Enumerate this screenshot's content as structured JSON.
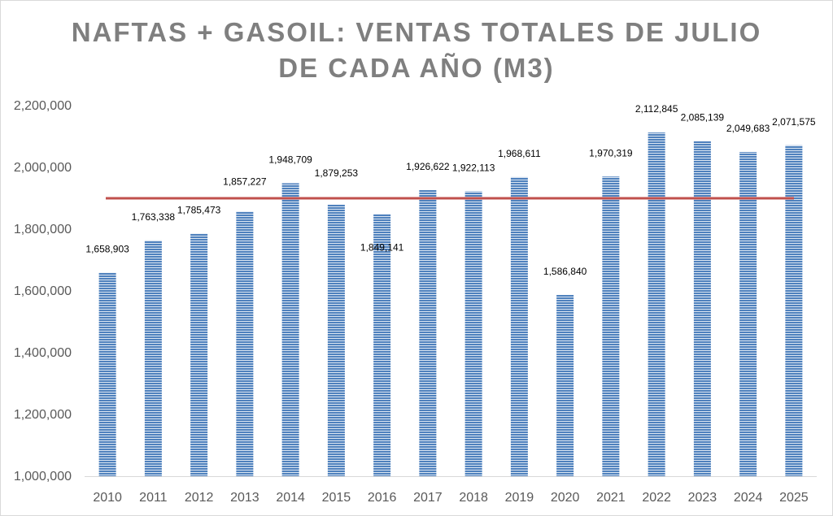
{
  "chart_data": {
    "type": "bar",
    "title_line1": "NAFTAS + GASOIL: VENTAS TOTALES DE JULIO",
    "title_line2": "DE CADA AÑO (M3)",
    "categories": [
      "2010",
      "2011",
      "2012",
      "2013",
      "2014",
      "2015",
      "2016",
      "2017",
      "2018",
      "2019",
      "2020",
      "2021",
      "2022",
      "2023",
      "2024",
      "2025"
    ],
    "values": [
      1658903,
      1763338,
      1785473,
      1857227,
      1948709,
      1879253,
      1849141,
      1926622,
      1922113,
      1968611,
      1586840,
      1970319,
      2112845,
      2085139,
      2049683,
      2071575
    ],
    "value_labels": [
      "1,658,903",
      "1,763,338",
      "1,785,473",
      "1,857,227",
      "1,948,709",
      "1,879,253",
      "1,849,141",
      "1,926,622",
      "1,922,113",
      "1,968,611",
      "1,586,840",
      "1,970,319",
      "2,112,845",
      "2,085,139",
      "2,049,683",
      "2,071,575"
    ],
    "ylim": [
      1000000,
      2200000
    ],
    "yticks": [
      1000000,
      1200000,
      1400000,
      1600000,
      1800000,
      2000000,
      2200000
    ],
    "ytick_labels": [
      "1,000,000",
      "1,200,000",
      "1,400,000",
      "1,600,000",
      "1,800,000",
      "2,000,000",
      "2,200,000"
    ],
    "reference_line": {
      "value": 1900000,
      "color": "#c0504d"
    },
    "bar_color": "#4f81bd",
    "bar_stripe_color": "#dce6f2",
    "axis_color": "#d9d9d9",
    "xlabel": "",
    "ylabel": "",
    "grid": false,
    "legend": "none"
  }
}
